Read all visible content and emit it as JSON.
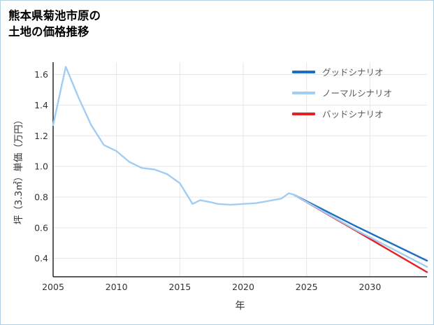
{
  "title": {
    "line1": "熊本県菊池市原の",
    "line2": "土地の価格推移"
  },
  "chart_data": {
    "type": "line",
    "title": "熊本県菊池市原の土地の価格推移",
    "xlabel": "年",
    "ylabel": "坪（3.3㎡）単価（万円）",
    "xlim": [
      2005,
      2034.5
    ],
    "ylim": [
      0.28,
      1.68
    ],
    "xticks": [
      2005,
      2010,
      2015,
      2020,
      2025,
      2030
    ],
    "yticks": [
      0.4,
      0.6,
      0.8,
      1.0,
      1.2,
      1.4,
      1.6
    ],
    "grid": true,
    "legend_position": "top-right",
    "draw_order": [
      0,
      2,
      1
    ],
    "colors": {
      "grid": "#e6e6e6",
      "axis": "#262626",
      "tick_text": "#333333",
      "legend_text": "#595959",
      "border": "#b3cfe3",
      "background": "#ffffff"
    },
    "series": [
      {
        "name": "グッドシナリオ",
        "color": "#1b6fc2",
        "x": [
          2024,
          2029,
          2034.5
        ],
        "y": [
          0.815,
          0.605,
          0.385
        ]
      },
      {
        "name": "ノーマルシナリオ",
        "color": "#a2cdf2",
        "x": [
          2005,
          2006,
          2007,
          2008,
          2009,
          2010,
          2011,
          2012,
          2013,
          2014,
          2015,
          2016,
          2016.6,
          2017.5,
          2018,
          2019,
          2020,
          2021,
          2022,
          2023,
          2023.6,
          2024,
          2029,
          2034.5
        ],
        "y": [
          1.27,
          1.65,
          1.45,
          1.27,
          1.14,
          1.1,
          1.03,
          0.99,
          0.98,
          0.95,
          0.89,
          0.755,
          0.78,
          0.765,
          0.755,
          0.75,
          0.755,
          0.76,
          0.775,
          0.79,
          0.825,
          0.815,
          0.58,
          0.345
        ]
      },
      {
        "name": "バッドシナリオ",
        "color": "#e32227",
        "x": [
          2024,
          2029,
          2034.5
        ],
        "y": [
          0.815,
          0.575,
          0.31
        ]
      }
    ]
  }
}
